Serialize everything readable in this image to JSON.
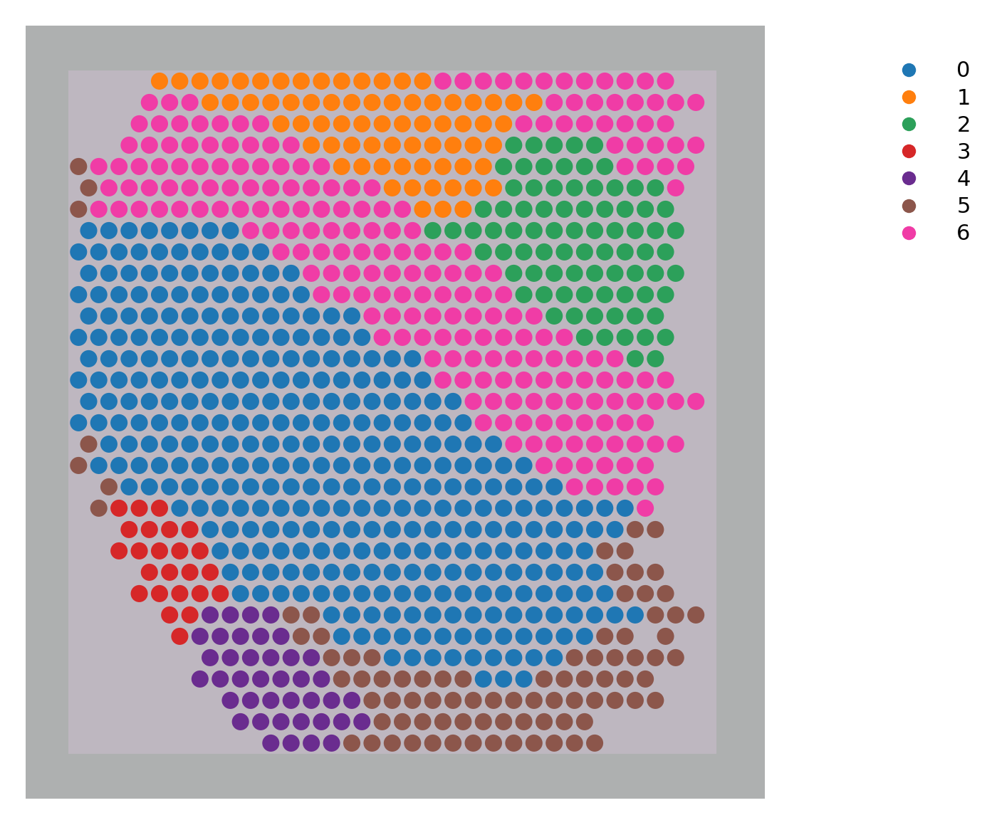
{
  "chart_data": {
    "type": "spatial_scatter",
    "tick_labels": false,
    "legend": "upper left",
    "series": [
      {
        "name": "0",
        "color": "#1f77b4"
      },
      {
        "name": "1",
        "color": "#ff7f0e"
      },
      {
        "name": "2",
        "color": "#2ca05a"
      },
      {
        "name": "3",
        "color": "#d62728"
      },
      {
        "name": "4",
        "color": "#6a2c8f"
      },
      {
        "name": "5",
        "color": "#8c564b"
      },
      {
        "name": "6",
        "color": "#f03ca6"
      }
    ],
    "grid": [
      "....11111111111111666666666666",
      "...6661111111111111111166666666",
      "...666666611111111111166666666",
      "..66666666611111111112222266666",
      "5666666666666111111112222226666",
      "566666666666666111111222222226",
      "566666666666666661112222222222",
      "000000006666666662222222222222",
      "000000000066666666662222222222",
      "000000000006666666666222222222",
      "000000000000666666666622222222",
      "00000000000000666666666222222.",
      "000000000000000666666666622222.",
      "00000000000000000666666666622.",
      "000000000000000000666666666666.",
      "0000000000000000000666666666666.",
      "00000000000000000000666666666.",
      "500000000000000000000666666666.",
      "50000000000000000000000666666.",
      ".5000000000000000000000066666.",
      ".5333000000000000000000000006.",
      "..333300000000000000000000055.",
      "..33333000000000000000000055.",
      "...33330000000000000000000555.",
      "...333330000000000000000000555.",
      "....334444550000000000000000555.",
      ".....34444455000000000000055 5.",
      "......444444555000000000555555.",
      "......44444445555555000555555.",
      ".......4444444555555555555555.",
      "........444444455555555555....",
      ".........44445555555555555...."
    ]
  }
}
